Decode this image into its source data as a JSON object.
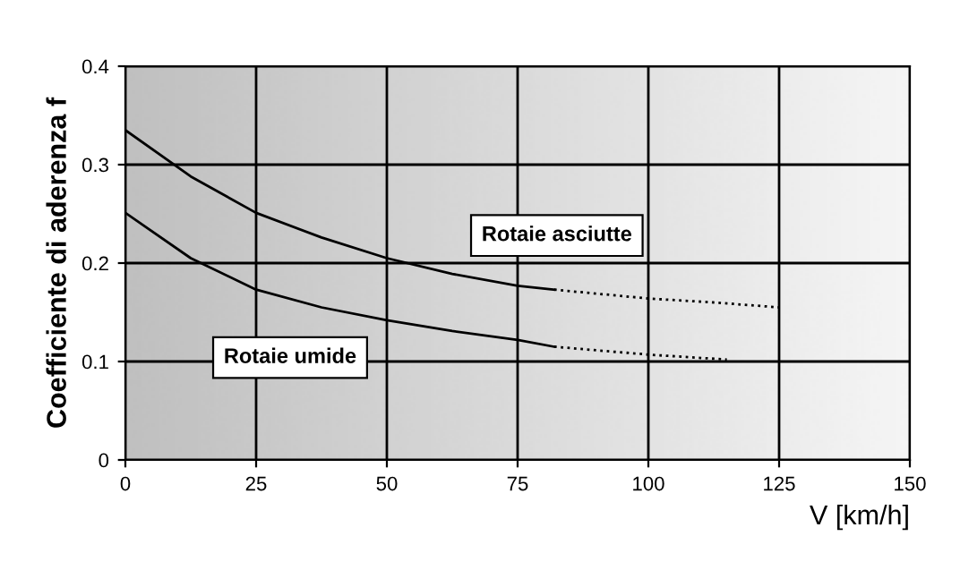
{
  "chart_data": {
    "type": "line",
    "xlabel": "V [km/h]",
    "ylabel": "Coefficiente di aderenza f",
    "xlim": [
      0,
      150
    ],
    "xticks": [
      0,
      25,
      50,
      75,
      100,
      125,
      150
    ],
    "ylim": [
      0,
      0.4
    ],
    "yticks": [
      0,
      0.1,
      0.2,
      0.3,
      0.4
    ],
    "grid": true,
    "legend": false,
    "series": [
      {
        "name": "Rotaie asciutte",
        "color": "#000000",
        "line_style": "solid",
        "x": [
          0,
          12.5,
          25,
          37.5,
          50,
          62.5,
          75,
          82
        ],
        "values": [
          0.335,
          0.288,
          0.251,
          0.226,
          0.205,
          0.189,
          0.177,
          0.173
        ]
      },
      {
        "color": "#000000",
        "line_style": "dotted",
        "x": [
          82,
          100,
          112.5,
          125
        ],
        "values": [
          0.173,
          0.164,
          0.16,
          0.155
        ]
      },
      {
        "name": "Rotaie umide",
        "color": "#000000",
        "line_style": "solid",
        "x": [
          0,
          12.5,
          25,
          37.5,
          50,
          62.5,
          75,
          82
        ],
        "values": [
          0.251,
          0.205,
          0.173,
          0.155,
          0.142,
          0.131,
          0.122,
          0.115
        ]
      },
      {
        "color": "#000000",
        "line_style": "dotted",
        "x": [
          82,
          100,
          115
        ],
        "values": [
          0.115,
          0.107,
          0.102
        ]
      }
    ]
  }
}
